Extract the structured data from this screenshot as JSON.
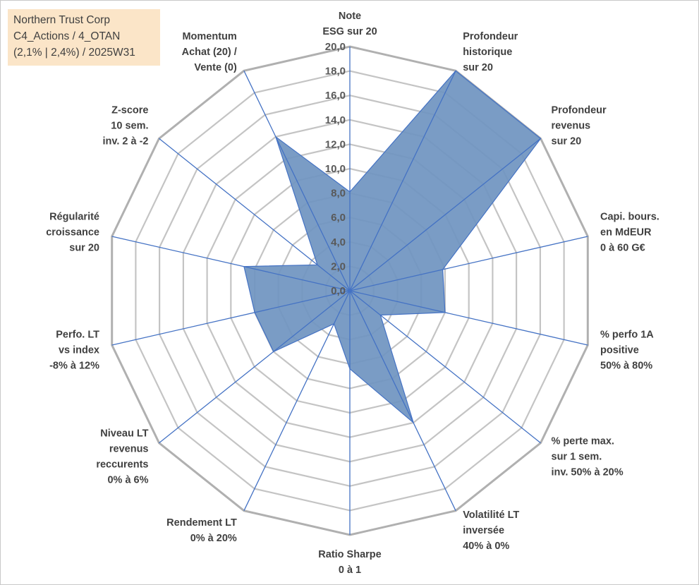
{
  "info_box": {
    "line1": "Northern Trust Corp",
    "line2": "C4_Actions / 4_OTAN",
    "line3": "(2,1% | 2,4%) / 2025W31"
  },
  "chart_data": {
    "type": "radar",
    "scale": {
      "min": 0,
      "max": 20,
      "step": 2
    },
    "tick_labels": [
      "0,0",
      "2,0",
      "4,0",
      "6,0",
      "8,0",
      "10,0",
      "12,0",
      "14,0",
      "16,0",
      "18,0",
      "20,0"
    ],
    "axes": [
      {
        "lines": [
          "Note",
          "ESG sur 20"
        ],
        "value": 8.1
      },
      {
        "lines": [
          "Profondeur",
          "historique",
          "sur 20"
        ],
        "value": 20.0
      },
      {
        "lines": [
          "Profondeur",
          "revenus",
          "sur 20"
        ],
        "value": 20.0
      },
      {
        "lines": [
          "Capi. bours.",
          "en MdEUR",
          "0 à 60 G€"
        ],
        "value": 7.8
      },
      {
        "lines": [
          "% perfo 1A",
          "positive",
          "50% à 80%"
        ],
        "value": 8.0
      },
      {
        "lines": [
          "% perte max.",
          "sur 1 sem.",
          "inv. 50% à 20%"
        ],
        "value": 3.2
      },
      {
        "lines": [
          "Volatilité LT",
          "inversée",
          "40% à 0%"
        ],
        "value": 12.0
      },
      {
        "lines": [
          "Ratio Sharpe",
          "0 à 1"
        ],
        "value": 6.4
      },
      {
        "lines": [
          "Rendement LT",
          "0% à 20%"
        ],
        "value": 3.0
      },
      {
        "lines": [
          "Niveau LT",
          "revenus",
          "reccurents",
          "0% à 6%"
        ],
        "value": 8.0
      },
      {
        "lines": [
          "Perfo. LT",
          "vs index",
          "-8% à 12%"
        ],
        "value": 8.0
      },
      {
        "lines": [
          "Régularité",
          "croissance",
          "sur 20"
        ],
        "value": 8.9
      },
      {
        "lines": [
          "Z-score",
          "10 sem.",
          "inv. 2 à -2"
        ],
        "value": 3.4
      },
      {
        "lines": [
          "Momentum",
          "Achat (20) /",
          "Vente (0)"
        ],
        "value": 14.0
      }
    ],
    "colors": {
      "fill": "#6f94c0",
      "stroke": "#4472c4",
      "spokes": "#4472c4",
      "grid": "#c4c4c4",
      "grid_outer": "#b0b0b0"
    },
    "grid": true
  }
}
